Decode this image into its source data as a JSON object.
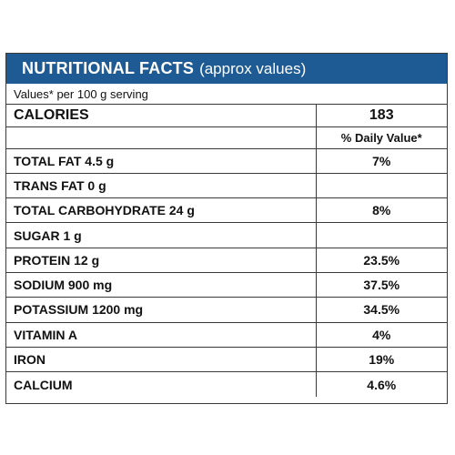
{
  "header": {
    "title": "NUTRITIONAL FACTS",
    "subtitle": "(approx values)"
  },
  "serving": "Values* per 100 g serving",
  "calories": {
    "label": "CALORIES",
    "value": "183"
  },
  "daily_value_header": "% Daily Value*",
  "rows": [
    {
      "label": "TOTAL FAT  4.5 g",
      "dv": "7%"
    },
    {
      "label": "TRANS FAT  0 g",
      "dv": ""
    },
    {
      "label": "TOTAL CARBOHYDRATE  24 g",
      "dv": "8%"
    },
    {
      "label": "SUGAR  1 g",
      "dv": ""
    },
    {
      "label": "PROTEIN  12 g",
      "dv": "23.5%"
    },
    {
      "label": "SODIUM  900 mg",
      "dv": "37.5%"
    },
    {
      "label": "POTASSIUM  1200 mg",
      "dv": "34.5%"
    },
    {
      "label": "VITAMIN A",
      "dv": "4%"
    },
    {
      "label": "IRON",
      "dv": "19%"
    },
    {
      "label": "CALCIUM",
      "dv": "4.6%"
    }
  ],
  "colors": {
    "header_bg": "#1e5a93",
    "header_text": "#ffffff",
    "border": "#3a3a3a"
  }
}
